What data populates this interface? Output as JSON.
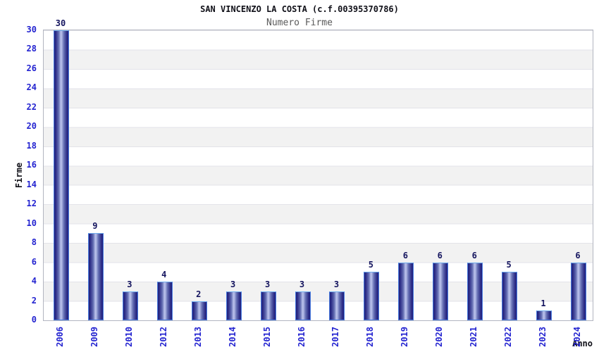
{
  "chart_data": {
    "type": "bar",
    "title": "SAN VINCENZO LA COSTA (c.f.00395370786)",
    "subtitle": "Numero Firme",
    "xlabel": "Anno",
    "ylabel": "Firme",
    "categories": [
      "2006",
      "2009",
      "2010",
      "2012",
      "2013",
      "2014",
      "2015",
      "2016",
      "2017",
      "2018",
      "2019",
      "2020",
      "2021",
      "2022",
      "2023",
      "2024"
    ],
    "values": [
      30,
      9,
      3,
      4,
      2,
      3,
      3,
      3,
      3,
      5,
      6,
      6,
      6,
      5,
      1,
      6
    ],
    "ylim": [
      0,
      30
    ],
    "ytick_step": 2,
    "legend": "none",
    "grid": "horizontal gridlines with alternating white/gray bands every 2 units",
    "bar_labels_shown": true,
    "colors": {
      "tick_text": "#2323d0",
      "value_text": "#15155f",
      "title_text": "#101018",
      "subtitle_text": "#5a5a5a",
      "band_gray": "#f2f2f2",
      "gridline": "#e3e3e9",
      "plot_border": "#b2b5c0",
      "bar_border": "#4a7de0",
      "bar_dark": "#22227d",
      "bar_mid": "#6670b4",
      "bar_light": "#b6bee9"
    }
  }
}
